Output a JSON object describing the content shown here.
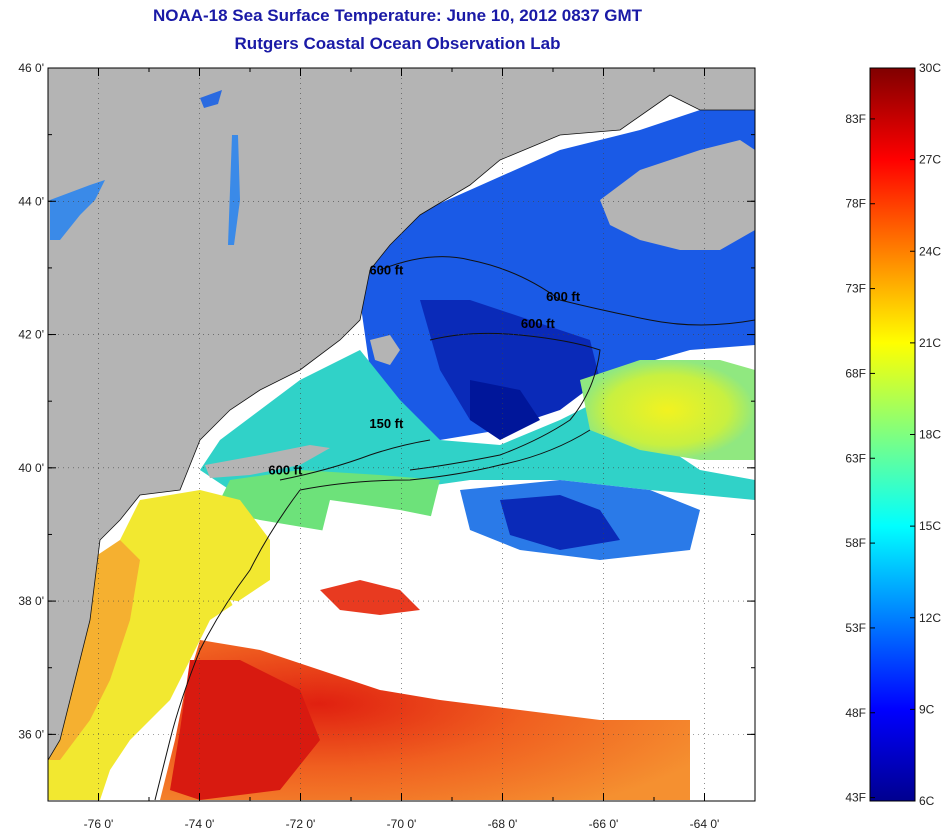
{
  "title": "NOAA-18 Sea Surface Temperature:  June 10, 2012 0837 GMT",
  "subtitle": "Rutgers Coastal Ocean Observation Lab",
  "colors": {
    "land": "#b4b4b4",
    "cloud": "#ffffff",
    "title": "#1a1aa6"
  },
  "map": {
    "lat_range": [
      35,
      46
    ],
    "lon_range": [
      -77,
      -63
    ],
    "lat_ticks": [
      {
        "value": 46,
        "label": "46 0'"
      },
      {
        "value": 44,
        "label": "44 0'"
      },
      {
        "value": 42,
        "label": "42 0'"
      },
      {
        "value": 40,
        "label": "40 0'"
      },
      {
        "value": 38,
        "label": "38 0'"
      },
      {
        "value": 36,
        "label": "36 0'"
      }
    ],
    "lon_ticks": [
      {
        "value": -76,
        "label": "-76 0'"
      },
      {
        "value": -74,
        "label": "-74 0'"
      },
      {
        "value": -72,
        "label": "-72 0'"
      },
      {
        "value": -70,
        "label": "-70 0'"
      },
      {
        "value": -68,
        "label": "-68 0'"
      },
      {
        "value": -66,
        "label": "-66 0'"
      },
      {
        "value": -64,
        "label": "-64 0'"
      }
    ],
    "contour_labels": [
      {
        "text": "600 ft",
        "lon": -70.3,
        "lat": 42.9
      },
      {
        "text": "600 ft",
        "lon": -66.8,
        "lat": 42.5
      },
      {
        "text": "600 ft",
        "lon": -67.3,
        "lat": 42.1
      },
      {
        "text": "150 ft",
        "lon": -70.3,
        "lat": 40.6
      },
      {
        "text": "600 ft",
        "lon": -72.3,
        "lat": 39.9
      }
    ]
  },
  "colorbar": {
    "min_c": 6,
    "max_c": 30,
    "celsius": [
      {
        "value": 30,
        "label": "30C"
      },
      {
        "value": 27,
        "label": "27C"
      },
      {
        "value": 24,
        "label": "24C"
      },
      {
        "value": 21,
        "label": "21C"
      },
      {
        "value": 18,
        "label": "18C"
      },
      {
        "value": 15,
        "label": "15C"
      },
      {
        "value": 12,
        "label": "12C"
      },
      {
        "value": 9,
        "label": "9C"
      },
      {
        "value": 6,
        "label": "6C"
      }
    ],
    "fahrenheit": [
      {
        "value": 83,
        "label": "83F"
      },
      {
        "value": 78,
        "label": "78F"
      },
      {
        "value": 73,
        "label": "73F"
      },
      {
        "value": 68,
        "label": "68F"
      },
      {
        "value": 63,
        "label": "63F"
      },
      {
        "value": 58,
        "label": "58F"
      },
      {
        "value": 53,
        "label": "53F"
      },
      {
        "value": 48,
        "label": "48F"
      },
      {
        "value": 43,
        "label": "43F"
      }
    ]
  }
}
